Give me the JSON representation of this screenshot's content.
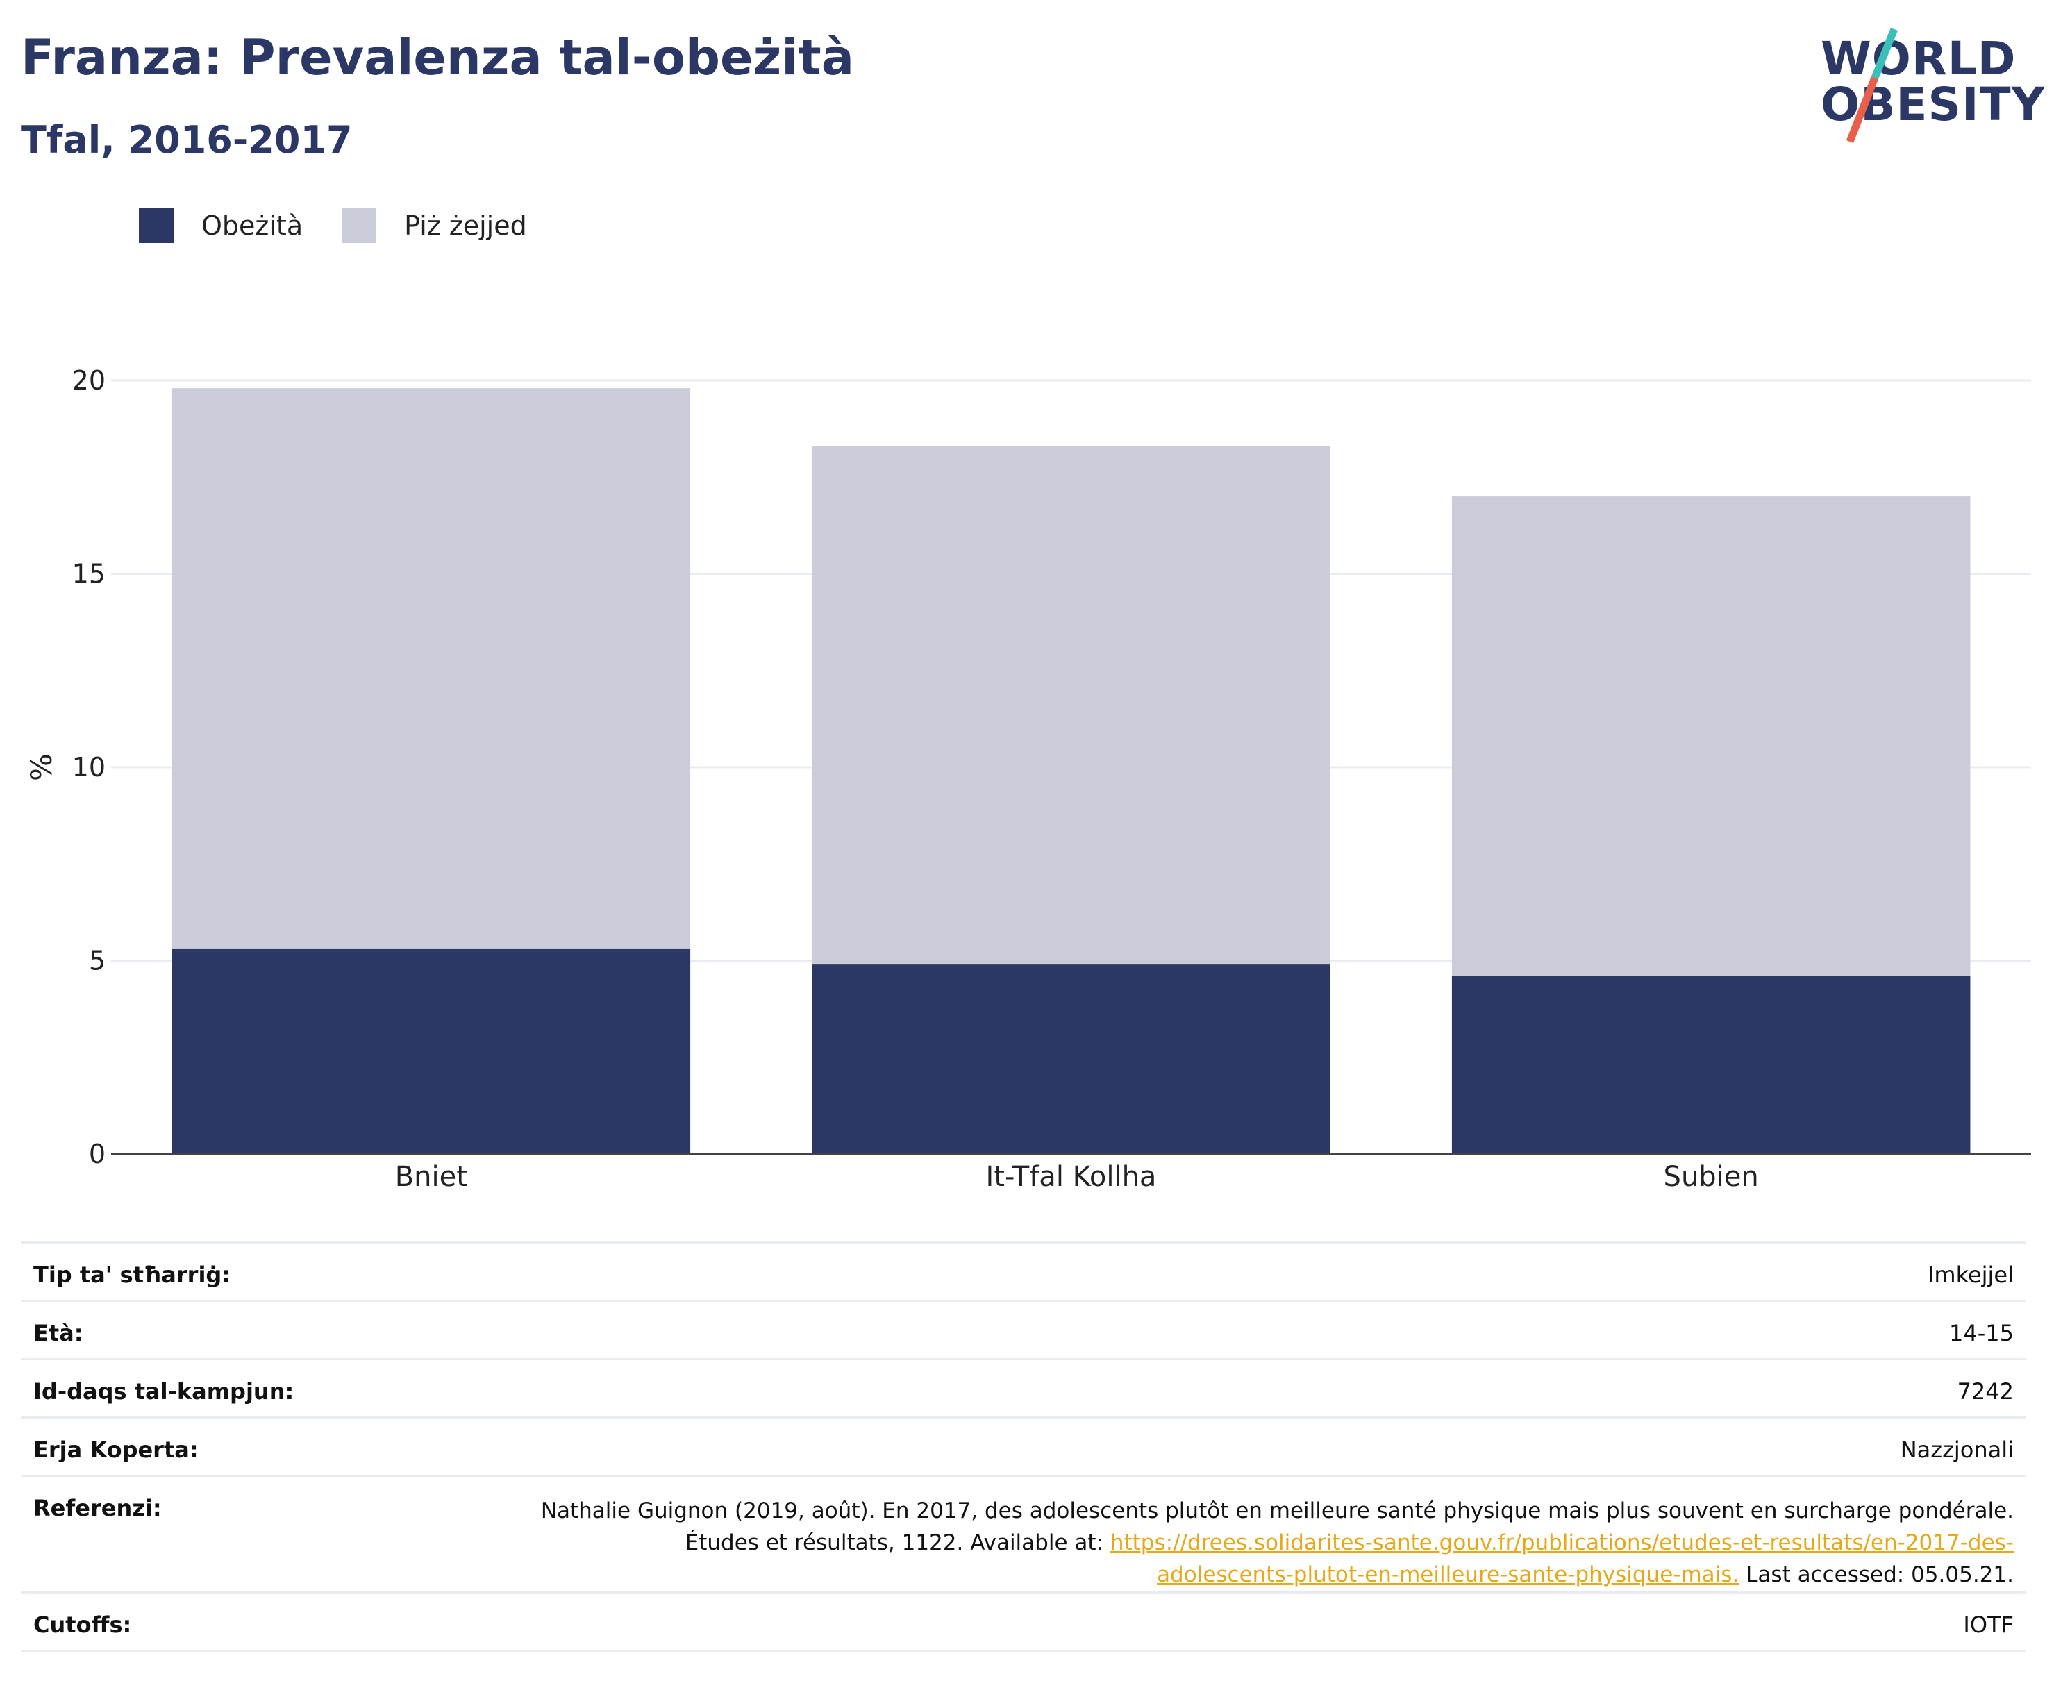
{
  "header": {
    "title": "Franza: Prevalenza tal-obeżità",
    "subtitle": "Tfal, 2016-2017"
  },
  "logo": {
    "line1": "WORLD",
    "line2": "OBESITY",
    "accent_colors": [
      "#3bbfb9",
      "#e8604c"
    ]
  },
  "legend": [
    {
      "label": "Obeżità",
      "color": "#2b3764"
    },
    {
      "label": "Piż żejjed",
      "color": "#cacdd9"
    }
  ],
  "chart_data": {
    "type": "bar",
    "stacked": true,
    "categories": [
      "Bniet",
      "It-Tfal Kollha",
      "Subien"
    ],
    "series": [
      {
        "name": "Obeżità",
        "values": [
          5.3,
          4.9,
          4.6
        ],
        "color": "#2b3764"
      },
      {
        "name": "Piż żejjed",
        "values": [
          14.5,
          13.4,
          12.4
        ],
        "color": "#cacdd9"
      }
    ],
    "totals": [
      19.8,
      18.3,
      17.0
    ],
    "ylabel": "%",
    "ylim": [
      0,
      20
    ],
    "yticks": [
      0,
      5,
      10,
      15,
      20
    ],
    "grid": true,
    "legend_position": "top-left"
  },
  "info": {
    "survey_type": {
      "label": "Tip ta' stħarriġ:",
      "value": "Imkejjel"
    },
    "age": {
      "label": "Età:",
      "value": "14-15"
    },
    "sample_size": {
      "label": "Id-daqs tal-kampjun:",
      "value": "7242"
    },
    "area": {
      "label": "Erja Koperta:",
      "value": "Nazzjonali"
    },
    "references": {
      "label": "Referenzi:",
      "line1": "Nathalie Guignon (2019, août). En 2017, des adolescents plutôt en meilleure santé physique mais plus souvent en surcharge pondérale.",
      "line2_prefix": "Études et résultats, 1122. Available at: ",
      "link_part1": "https://drees.solidarites-sante.gouv.fr/publications/etudes-et-resultats/en-2017-des-",
      "link_part2": "adolescents-plutot-en-meilleure-sante-physique-mais.",
      "suffix": " Last accessed: 05.05.21."
    },
    "cutoffs": {
      "label": "Cutoffs:",
      "value": "IOTF"
    }
  }
}
